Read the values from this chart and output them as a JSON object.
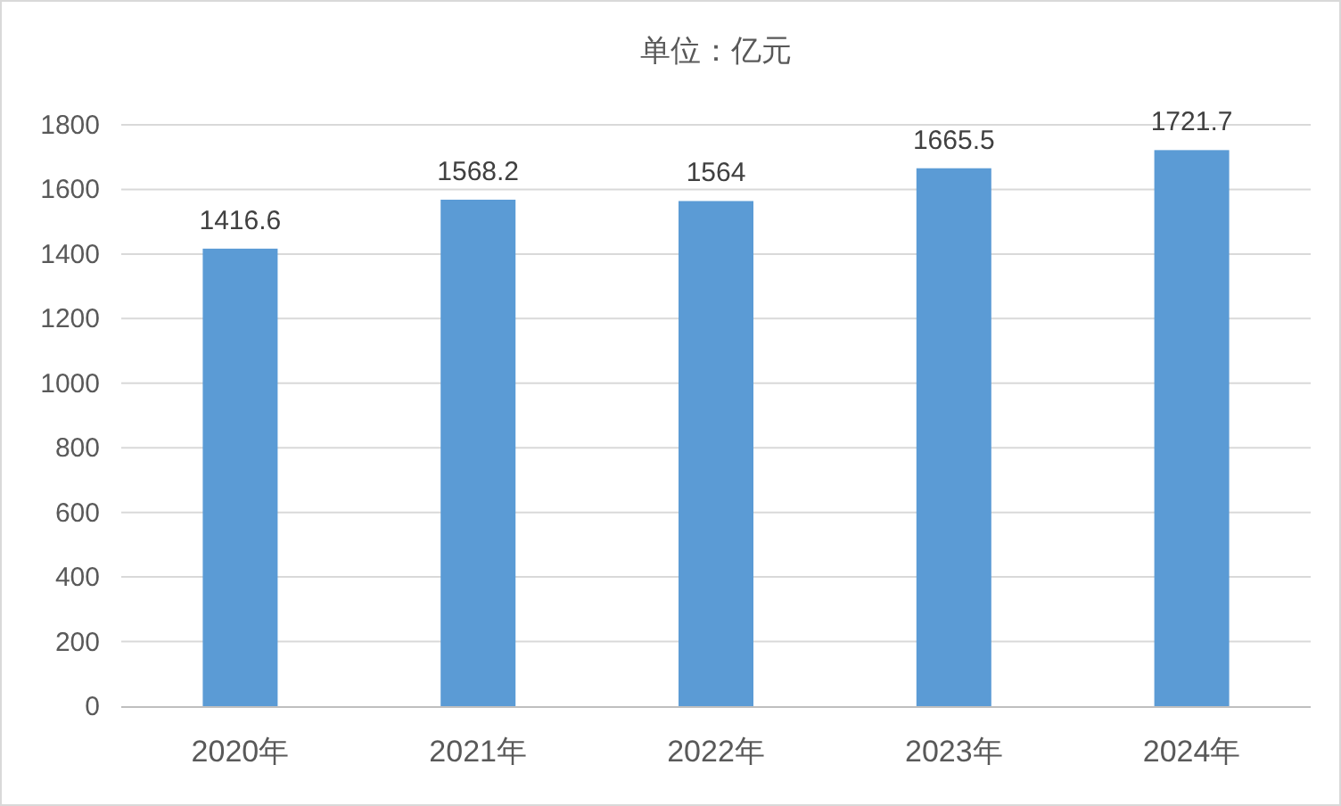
{
  "chart_data": {
    "type": "bar",
    "title": "单位：亿元",
    "categories": [
      "2020年",
      "2021年",
      "2022年",
      "2023年",
      "2024年"
    ],
    "values": [
      1416.6,
      1568.2,
      1564,
      1665.5,
      1721.7
    ],
    "color": "#5b9bd5",
    "ylim": [
      0,
      1800
    ],
    "yticks": [
      0,
      200,
      400,
      600,
      800,
      1000,
      1200,
      1400,
      1600,
      1800
    ],
    "grid": "y",
    "data_labels": true
  }
}
